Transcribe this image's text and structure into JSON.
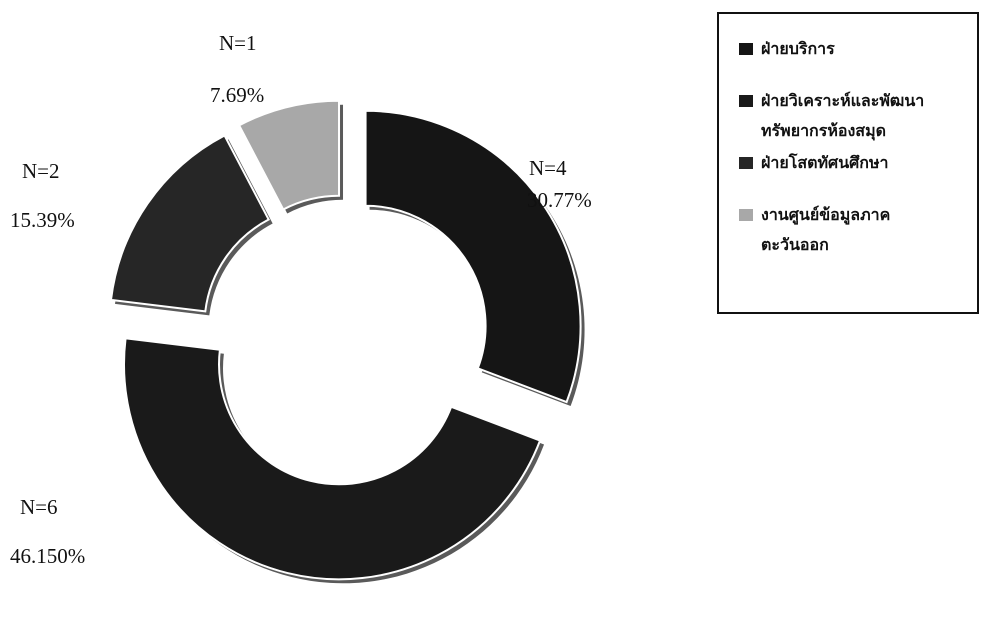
{
  "chart_data": {
    "type": "pie",
    "style": "donut",
    "categories": [
      "ฝ่ายบริการ",
      "ฝ่ายวิเคราะห์และพัฒนาทรัพยากรห้องสมุด",
      "ฝ่ายโสตทัศนศึกษา",
      "งานศูนย์ข้อมูลภาคตะวันออก"
    ],
    "values": [
      4,
      6,
      2,
      1
    ],
    "labels": [
      {
        "count": "N=4",
        "percent": "30.77%"
      },
      {
        "count": "N=6",
        "percent": "46.150%"
      },
      {
        "count": "N=2",
        "percent": "15.39%"
      },
      {
        "count": "N=1",
        "percent": "7.69%"
      }
    ],
    "colors": [
      "#151515",
      "#1a1a1a",
      "#262626",
      "#a8a8a8"
    ],
    "exploded": true,
    "legend_position": "top-right"
  },
  "legend": {
    "items": [
      {
        "lines": [
          "ฝ่ายบริการ"
        ],
        "color": "#151515"
      },
      {
        "lines": [
          "ฝ่ายวิเคราะห์และพัฒนา",
          "ทรัพยากรห้องสมุด"
        ],
        "color": "#1a1a1a"
      },
      {
        "lines": [
          "ฝ่ายโสตทัศนศึกษา"
        ],
        "color": "#262626"
      },
      {
        "lines": [
          "งานศูนย์ข้อมูลภาค",
          "ตะวันออก"
        ],
        "color": "#a8a8a8"
      }
    ]
  }
}
